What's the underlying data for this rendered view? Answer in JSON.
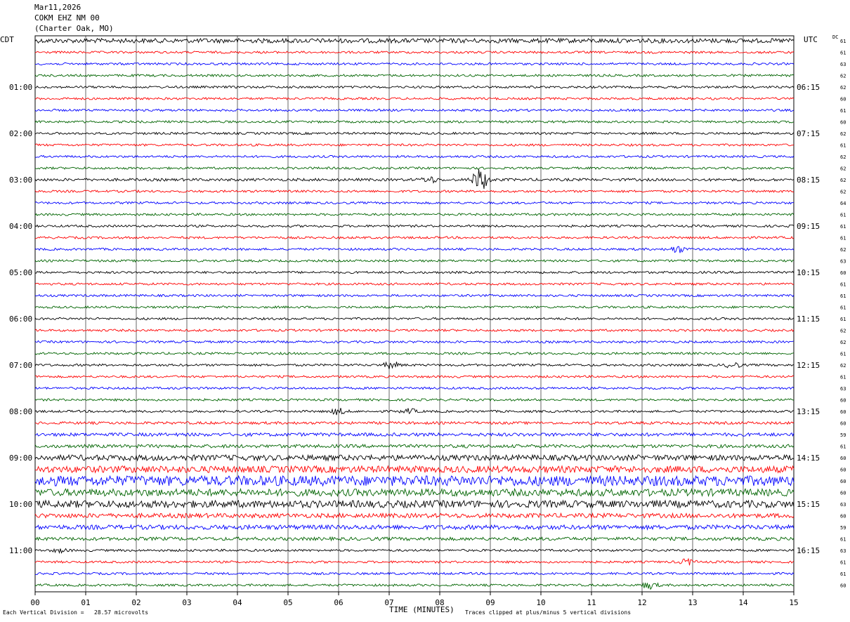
{
  "header": {
    "date": "Mar11,2026",
    "station": "COKM EHZ NM 00",
    "location": "(Charter Oak, MO)"
  },
  "left_axis_title": "CDT",
  "right_axis_title": "UTC",
  "dc_label": "DC",
  "footer": {
    "scale": "Each Vertical Division =   28.57 microvolts",
    "xlabel": "TIME (MINUTES)",
    "clip": "Traces clipped at plus/minus 5 vertical divisions"
  },
  "colors": {
    "trace_cycle": [
      "#000000",
      "#ff0000",
      "#0000ff",
      "#006400"
    ],
    "grid": "#000000"
  },
  "chart_data": {
    "type": "line",
    "title": "COKM EHZ NM 00",
    "xlabel": "TIME (MINUTES)",
    "xlim": [
      0,
      15
    ],
    "x_ticks": [
      "00",
      "01",
      "02",
      "03",
      "04",
      "05",
      "06",
      "07",
      "08",
      "09",
      "10",
      "11",
      "12",
      "13",
      "14",
      "15"
    ],
    "row_count": 48,
    "left_time_labels": [
      {
        "row": 4,
        "text": "01:00"
      },
      {
        "row": 8,
        "text": "02:00"
      },
      {
        "row": 12,
        "text": "03:00"
      },
      {
        "row": 16,
        "text": "04:00"
      },
      {
        "row": 20,
        "text": "05:00"
      },
      {
        "row": 24,
        "text": "06:00"
      },
      {
        "row": 28,
        "text": "07:00"
      },
      {
        "row": 32,
        "text": "08:00"
      },
      {
        "row": 36,
        "text": "09:00"
      },
      {
        "row": 40,
        "text": "10:00"
      },
      {
        "row": 44,
        "text": "11:00"
      }
    ],
    "right_time_labels": [
      {
        "row": 4,
        "text": "06:15"
      },
      {
        "row": 8,
        "text": "07:15"
      },
      {
        "row": 12,
        "text": "08:15"
      },
      {
        "row": 16,
        "text": "09:15"
      },
      {
        "row": 20,
        "text": "10:15"
      },
      {
        "row": 24,
        "text": "11:15"
      },
      {
        "row": 28,
        "text": "12:15"
      },
      {
        "row": 32,
        "text": "13:15"
      },
      {
        "row": 36,
        "text": "14:15"
      },
      {
        "row": 40,
        "text": "15:15"
      },
      {
        "row": 44,
        "text": "16:15"
      }
    ],
    "dc_values": [
      61,
      61,
      63,
      62,
      62,
      60,
      61,
      60,
      62,
      61,
      62,
      62,
      62,
      62,
      64,
      61,
      61,
      61,
      62,
      63,
      60,
      61,
      61,
      61,
      61,
      62,
      62,
      61,
      62,
      61,
      63,
      60,
      60,
      60,
      59,
      61,
      60,
      60,
      60,
      60,
      63,
      60,
      59,
      61,
      63,
      61,
      61,
      60
    ],
    "row_noise_level": [
      2,
      1,
      1,
      1,
      1,
      1,
      1,
      1,
      1,
      1,
      1,
      1,
      1.2,
      1,
      1,
      1,
      1,
      1,
      1,
      1,
      1,
      1,
      1,
      1,
      1,
      1,
      1,
      1,
      1,
      1,
      1,
      1,
      1,
      1.2,
      1.5,
      1.5,
      2.5,
      3,
      4.5,
      3.2,
      3.2,
      2,
      2,
      1.5,
      1,
      1,
      1,
      1
    ],
    "events": [
      {
        "row": 12,
        "minute": 8.8,
        "amplitude": 10
      },
      {
        "row": 12,
        "minute": 7.8,
        "amplitude": 2.5
      },
      {
        "row": 18,
        "minute": 12.7,
        "amplitude": 3
      },
      {
        "row": 28,
        "minute": 7.05,
        "amplitude": 3
      },
      {
        "row": 28,
        "minute": 13.8,
        "amplitude": 2.5
      },
      {
        "row": 32,
        "minute": 6.0,
        "amplitude": 2.5
      },
      {
        "row": 32,
        "minute": 7.4,
        "amplitude": 2
      },
      {
        "row": 44,
        "minute": 0.5,
        "amplitude": 1.5
      },
      {
        "row": 45,
        "minute": 12.9,
        "amplitude": 2.5
      },
      {
        "row": 47,
        "minute": 12.15,
        "amplitude": 3
      }
    ]
  }
}
